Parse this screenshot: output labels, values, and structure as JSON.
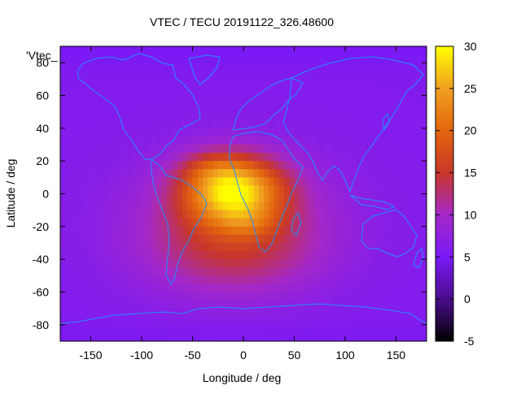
{
  "chart_data": {
    "type": "heatmap",
    "title": "VTEC / TECU 20191122_326.48600",
    "xlabel": "Longitude / deg",
    "ylabel": "Latitude / deg",
    "key_label": "'Vtec_",
    "xlim": [
      -180,
      180
    ],
    "ylim": [
      -90,
      90
    ],
    "xticks": [
      -150,
      -100,
      -50,
      0,
      50,
      100,
      150
    ],
    "yticks": [
      -80,
      -60,
      -40,
      -20,
      0,
      20,
      40,
      60,
      80
    ],
    "colorbar": {
      "range": [
        -5,
        30
      ],
      "ticks": [
        -5,
        0,
        5,
        10,
        15,
        20,
        25,
        30
      ],
      "colors": [
        "#000000",
        "#4b0c8c",
        "#7a19f6",
        "#a428c8",
        "#c8372a",
        "#e3660d",
        "#f0a020",
        "#ffff00"
      ]
    },
    "field": {
      "background": 6,
      "features": [
        {
          "name": "equatorial anomaly peak",
          "lon": -10,
          "lat": 2,
          "value": 29
        },
        {
          "name": "northern crest",
          "lon": -30,
          "lat": 16,
          "value": 27
        },
        {
          "name": "southern crest",
          "lon": 5,
          "lat": -18,
          "value": 27
        },
        {
          "name": "South Atlantic extension",
          "lon": -10,
          "lat": -35,
          "value": 15
        }
      ]
    },
    "coastline_color": "#1e90ff",
    "grid": false,
    "legend": "top-left"
  }
}
